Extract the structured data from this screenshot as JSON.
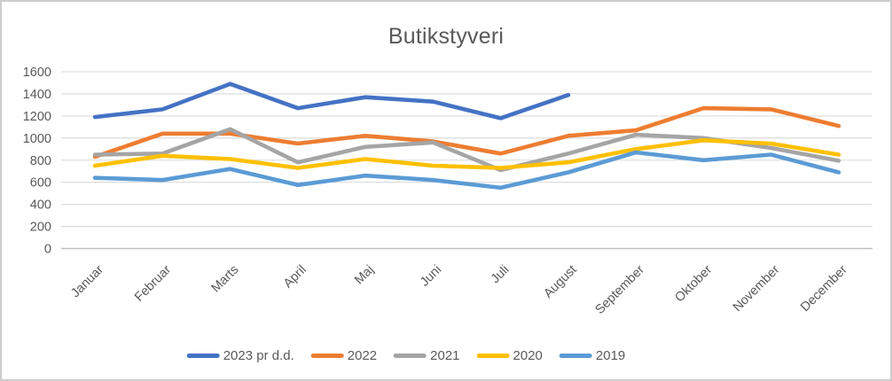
{
  "chart_data": {
    "type": "line",
    "title": "Butikstyveri",
    "categories": [
      "Januar",
      "Februar",
      "Marts",
      "April",
      "Maj",
      "Juni",
      "Juli",
      "August",
      "September",
      "Oktober",
      "November",
      "December"
    ],
    "series": [
      {
        "name": "2023 pr d.d.",
        "color": "#4472C4",
        "values": [
          1190,
          1260,
          1490,
          1270,
          1370,
          1330,
          1180,
          1390,
          null,
          null,
          null,
          null
        ]
      },
      {
        "name": "2022",
        "color": "#ED7D31",
        "values": [
          830,
          1040,
          1040,
          950,
          1020,
          970,
          860,
          1020,
          1070,
          1270,
          1260,
          1110
        ]
      },
      {
        "name": "2021",
        "color": "#A5A5A5",
        "values": [
          850,
          860,
          1080,
          780,
          920,
          960,
          710,
          860,
          1030,
          1000,
          910,
          795
        ]
      },
      {
        "name": "2020",
        "color": "#FFC000",
        "values": [
          750,
          840,
          810,
          730,
          810,
          750,
          730,
          780,
          900,
          980,
          950,
          850
        ]
      },
      {
        "name": "2019",
        "color": "#5B9BD5",
        "values": [
          640,
          620,
          720,
          575,
          660,
          620,
          550,
          690,
          870,
          800,
          850,
          690
        ]
      }
    ],
    "y_axis": {
      "min": 0,
      "max": 1600,
      "step": 200,
      "ticks": [
        0,
        200,
        400,
        600,
        800,
        1000,
        1200,
        1400,
        1600
      ]
    },
    "x_axis": {
      "label_rotation": -45
    },
    "grid": true,
    "legend_position": "bottom",
    "colors": {
      "text": "#595959",
      "gridline": "#D9D9D9",
      "axis_line": "#BFBFBF",
      "background": "#FFFFFF"
    }
  }
}
